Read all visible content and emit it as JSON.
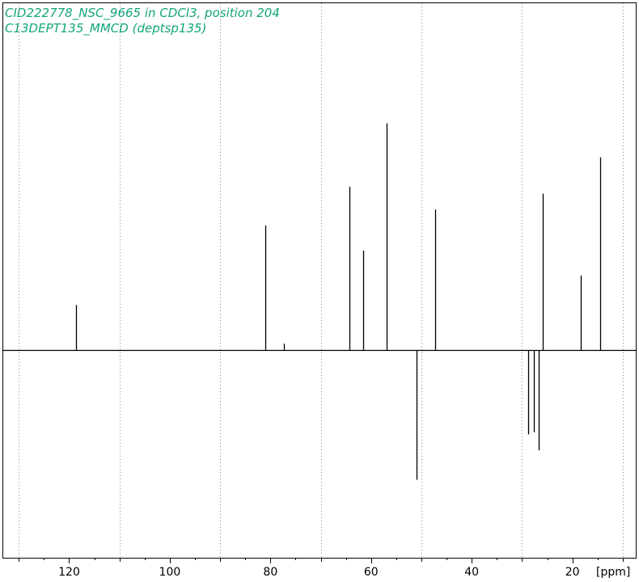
{
  "header": {
    "line1": "CID222778_NSC_9665 in CDCl3, position 204",
    "line2": "C13DEPT135_MMCD (deptsp135)"
  },
  "colors": {
    "title": "#12a57a",
    "spectrum": "#000000",
    "grid": "#888888",
    "frame": "#000000"
  },
  "chart_data": {
    "type": "line",
    "title": "",
    "xlabel": "[ppm]",
    "ylabel": "",
    "x_reversed": true,
    "xlim": [
      133.1,
      7.4
    ],
    "ylim": [
      -1,
      1
    ],
    "grid": "vertical dotted",
    "x_ticks": [
      120,
      100,
      80,
      60,
      40,
      20
    ],
    "x_tick_labels": [
      "120",
      "100",
      "80",
      "60",
      "40",
      "20"
    ],
    "peaks": [
      {
        "ppm": 118.6,
        "intensity": 0.2
      },
      {
        "ppm": 81.1,
        "intensity": 0.55
      },
      {
        "ppm": 77.3,
        "intensity": 0.03
      },
      {
        "ppm": 64.3,
        "intensity": 0.72
      },
      {
        "ppm": 61.6,
        "intensity": 0.44
      },
      {
        "ppm": 56.9,
        "intensity": 1.0
      },
      {
        "ppm": 50.9,
        "intensity": -0.57
      },
      {
        "ppm": 47.2,
        "intensity": 0.62
      },
      {
        "ppm": 28.8,
        "intensity": -0.37
      },
      {
        "ppm": 27.6,
        "intensity": -0.36
      },
      {
        "ppm": 26.7,
        "intensity": -0.44
      },
      {
        "ppm": 25.9,
        "intensity": 0.69
      },
      {
        "ppm": 18.4,
        "intensity": 0.33
      },
      {
        "ppm": 14.4,
        "intensity": 0.85
      }
    ]
  }
}
